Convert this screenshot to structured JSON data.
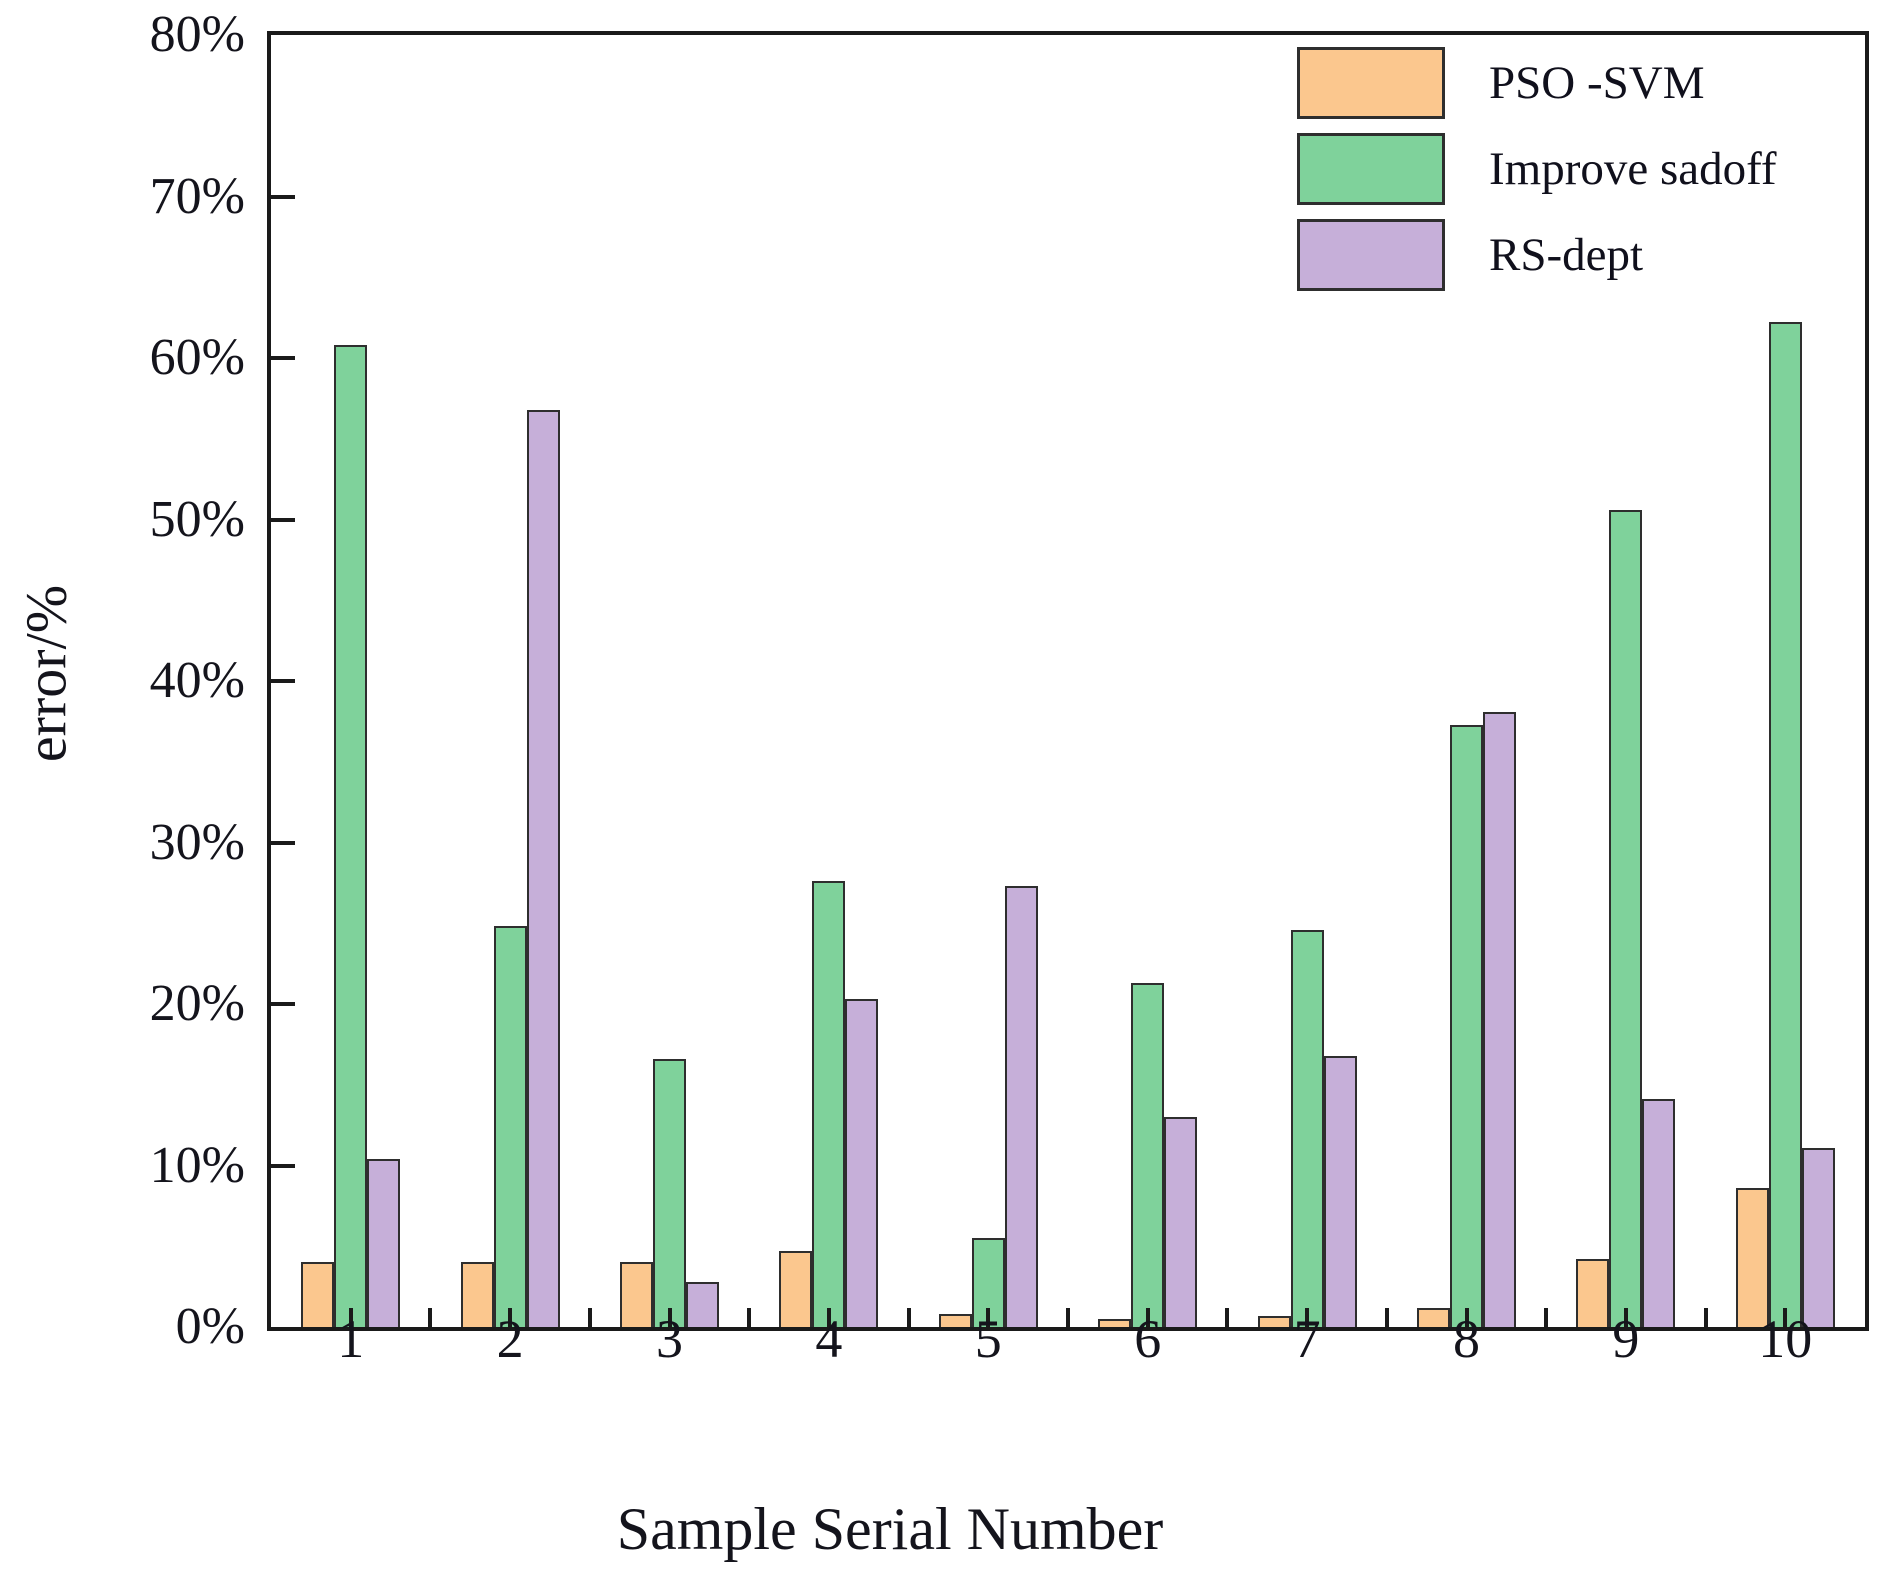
{
  "figure": {
    "background": "#ffffff",
    "axis_color": "#1a1a1a",
    "text_color": "#14141c"
  },
  "chart_data": {
    "type": "bar",
    "title": "",
    "xlabel": "Sample Serial Number",
    "ylabel": "error/%",
    "categories": [
      "1",
      "2",
      "3",
      "4",
      "5",
      "6",
      "7",
      "8",
      "9",
      "10"
    ],
    "series": [
      {
        "name": "PSO -SVM",
        "color": "#fbc78e",
        "edge_color": "#2e2e2e",
        "values": [
          4.0,
          4.0,
          4.0,
          4.7,
          0.8,
          0.5,
          0.7,
          1.2,
          4.2,
          8.6
        ]
      },
      {
        "name": "Improve sadoff",
        "color": "#7fd29b",
        "edge_color": "#2e2e2e",
        "values": [
          60.8,
          24.8,
          16.6,
          27.6,
          5.5,
          21.3,
          24.6,
          37.3,
          50.6,
          62.2
        ]
      },
      {
        "name": "RS-dept",
        "color": "#c6afd9",
        "edge_color": "#2e2e2e",
        "values": [
          10.4,
          56.8,
          2.8,
          20.3,
          27.3,
          13.0,
          16.8,
          38.1,
          14.1,
          11.1
        ]
      }
    ],
    "ylim": [
      0,
      80
    ],
    "ytick_labels": [
      "0%",
      "10%",
      "20%",
      "30%",
      "40%",
      "50%",
      "60%",
      "70%",
      "80%"
    ],
    "xtick_labels": [
      "1",
      "2",
      "3",
      "4",
      "5",
      "6",
      "7",
      "8",
      "9",
      "10"
    ],
    "grid": false,
    "legend_position": "top-right"
  }
}
